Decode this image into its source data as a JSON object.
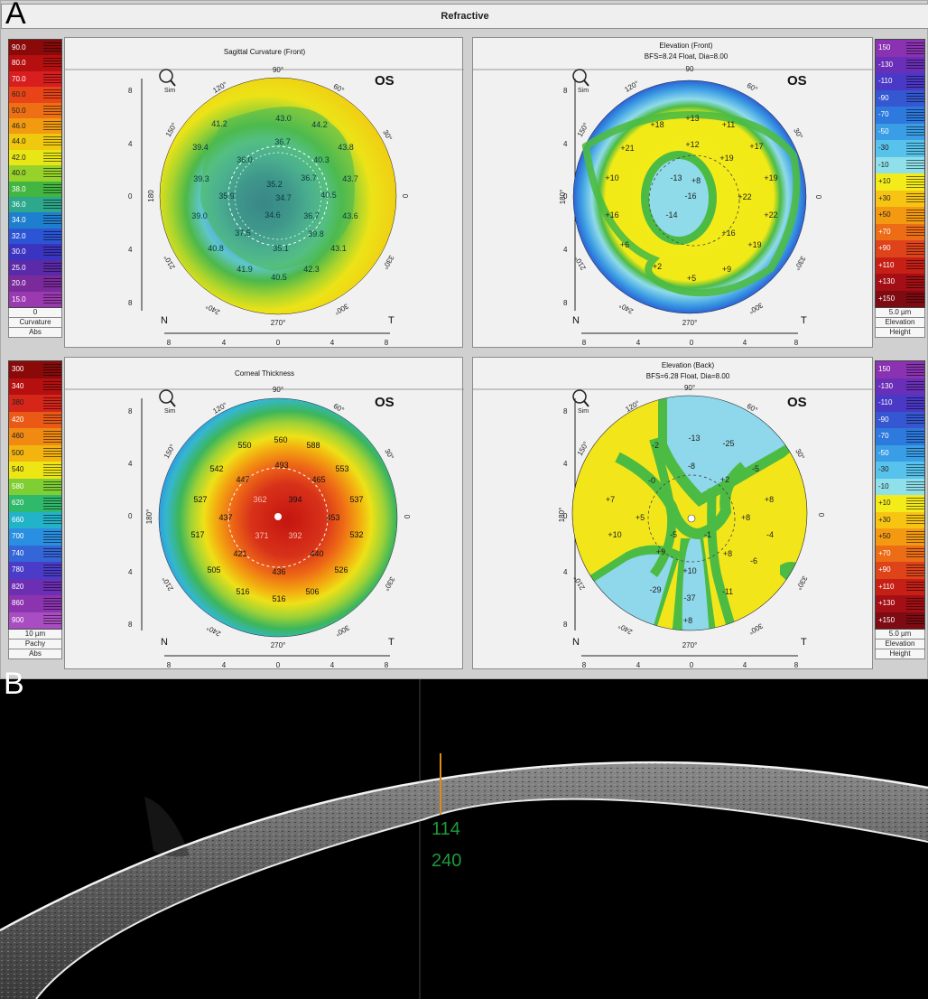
{
  "labels": {
    "a": "A",
    "b": "B"
  },
  "header": {
    "title": "Refractive"
  },
  "maps": [
    {
      "title": "Sagittal Curvature (Front)",
      "subtitle": "",
      "eye": "OS",
      "zoom_label": "Sim",
      "tick_labels": [
        "8",
        "4",
        "0",
        "4",
        "8"
      ],
      "angles": {
        "a90": "90°",
        "a120": "120°",
        "a60": "60°",
        "a150": "150°",
        "a30": "30°",
        "a180": "180",
        "a0": "0",
        "a210": "210°",
        "a330": "330°",
        "a240": "240°",
        "a300": "300°",
        "a270": "270°"
      },
      "nt": {
        "n": "N",
        "t": "T"
      },
      "values": [
        "41.2",
        "43.0",
        "44.2",
        "39.4",
        "36.7",
        "43.8",
        "36.0",
        "40.3",
        "39.3",
        "35.2",
        "36.7",
        "43.7",
        "35.9",
        "34.7",
        "40.5",
        "39.0",
        "34.6",
        "36.7",
        "43.6",
        "37.5",
        "39.8",
        "40.8",
        "35.1",
        "43.1",
        "41.9",
        "40.5",
        "42.3"
      ],
      "scale": {
        "side": "left",
        "labels": [
          "90.0",
          "80.0",
          "70.0",
          "60.0",
          "50.0",
          "46.0",
          "44.0",
          "42.0",
          "40.0",
          "38.0",
          "36.0",
          "34.0",
          "32.0",
          "30.0",
          "25.0",
          "20.0",
          "15.0"
        ],
        "colors": [
          "#8a0a0a",
          "#b50f0f",
          "#d81e1e",
          "#e84418",
          "#ef6f14",
          "#f29b10",
          "#f0c80e",
          "#e8e614",
          "#96d22a",
          "#42b640",
          "#2da88c",
          "#1f7fcf",
          "#2c55d6",
          "#3b34c0",
          "#5a2aa8",
          "#7b2a9c",
          "#9b3ab0"
        ],
        "foot": [
          "0",
          "Curvature",
          "Abs"
        ]
      }
    },
    {
      "title": "Elevation (Front)",
      "subtitle": "BFS=8.24 Float, Dia=8.00",
      "eye": "OS",
      "zoom_label": "Sim",
      "tick_labels": [
        "8",
        "4",
        "0",
        "4",
        "8"
      ],
      "angles": {
        "a90": "90",
        "a120": "120°",
        "a60": "60°",
        "a150": "150°",
        "a30": "30°",
        "a180": "180°",
        "a0": "0",
        "a210": "210°",
        "a330": "330°",
        "a240": "240°",
        "a300": "300°",
        "a270": "270°"
      },
      "nt": {
        "n": "N",
        "t": "T"
      },
      "values": [
        "+13",
        "+11",
        "+18",
        "+12",
        "+17",
        "+21",
        "+19",
        "+10",
        "-13",
        "+19",
        "+8",
        "-16",
        "+22",
        "+16",
        "-14",
        "+22",
        "+16",
        "+6",
        "+19",
        "+2",
        "+9",
        "+5"
      ],
      "scale": {
        "side": "right",
        "labels": [
          "150",
          "-130",
          "-110",
          "-90",
          "-70",
          "-50",
          "-30",
          "-10",
          "+10",
          "+30",
          "+50",
          "+70",
          "+90",
          "+110",
          "+130",
          "+150"
        ],
        "colors": [
          "#8a32b2",
          "#6a2fb8",
          "#4a38c6",
          "#3557d2",
          "#2d79dd",
          "#3a9ee6",
          "#57c3ec",
          "#8fe0ea",
          "#f4ec1a",
          "#f7c414",
          "#f39a12",
          "#ec6d16",
          "#df431a",
          "#c62016",
          "#a30f14",
          "#7e0a12"
        ],
        "foot": [
          "5.0 µm",
          "Elevation",
          "Height"
        ]
      }
    },
    {
      "title": "Corneal Thickness",
      "subtitle": "",
      "eye": "OS",
      "zoom_label": "Sim",
      "tick_labels": [
        "8",
        "4",
        "0",
        "4",
        "8"
      ],
      "angles": {
        "a90": "90°",
        "a120": "120°",
        "a60": "60°",
        "a150": "150°",
        "a30": "30°",
        "a180": "180°",
        "a0": "0",
        "a210": "210°",
        "a330": "330°",
        "a240": "240°",
        "a300": "300°",
        "a270": "270°"
      },
      "nt": {
        "n": "N",
        "t": "T"
      },
      "values": [
        "560",
        "550",
        "588",
        "493",
        "542",
        "447",
        "465",
        "553",
        "527",
        "362",
        "394",
        "537",
        "437",
        "453",
        "517",
        "371",
        "392",
        "532",
        "421",
        "440",
        "505",
        "436",
        "526",
        "516",
        "516",
        "506"
      ],
      "scale": {
        "side": "left",
        "labels": [
          "300",
          "340",
          "380",
          "420",
          "460",
          "500",
          "540",
          "580",
          "620",
          "660",
          "700",
          "740",
          "780",
          "820",
          "860",
          "900"
        ],
        "colors": [
          "#8a0a0a",
          "#b50f0f",
          "#d6261a",
          "#ea5a16",
          "#f08a12",
          "#f3b410",
          "#ede514",
          "#7fcf34",
          "#2fb96a",
          "#22b3c8",
          "#2a8fe0",
          "#3566d8",
          "#4a3cc8",
          "#6c2fb4",
          "#8c34b0",
          "#a94ec2"
        ],
        "foot": [
          "10 µm",
          "Pachy",
          "Abs"
        ]
      }
    },
    {
      "title": "Elevation (Back)",
      "subtitle": "BFS=6.28 Float, Dia=8.00",
      "eye": "OS",
      "zoom_label": "Sim",
      "tick_labels": [
        "8",
        "4",
        "0",
        "4",
        "8"
      ],
      "angles": {
        "a90": "90°",
        "a120": "120°",
        "a60": "60°",
        "a150": "150°",
        "a30": "30°",
        "a180": "180°",
        "a0": "0",
        "a210": "210°",
        "a330": "330°",
        "a240": "240°",
        "a300": "300°",
        "a270": "270°"
      },
      "nt": {
        "n": "N",
        "t": "T"
      },
      "values": [
        "-13",
        "-25",
        "-2",
        "-8",
        "-5",
        "-0",
        "+2",
        "+7",
        "+8",
        "+5",
        "+8",
        "+10",
        "-5",
        "-1",
        "-4",
        "+9",
        "-6",
        "+8",
        "+10",
        "-29",
        "-37",
        "-11",
        "+8"
      ],
      "scale": {
        "side": "right",
        "labels": [
          "150",
          "-130",
          "-110",
          "-90",
          "-70",
          "-50",
          "-30",
          "-10",
          "+10",
          "+30",
          "+50",
          "+70",
          "+90",
          "+110",
          "+130",
          "+150"
        ],
        "colors": [
          "#8a32b2",
          "#6a2fb8",
          "#4a38c6",
          "#3557d2",
          "#2d79dd",
          "#3a9ee6",
          "#57c3ec",
          "#8fe0ea",
          "#f4ec1a",
          "#f7c414",
          "#f39a12",
          "#ec6d16",
          "#df431a",
          "#c62016",
          "#a30f14",
          "#7e0a12"
        ],
        "foot": [
          "5.0 µm",
          "Elevation",
          "Height"
        ]
      }
    }
  ],
  "oct": {
    "thickness_1": "114",
    "thickness_2": "240"
  }
}
